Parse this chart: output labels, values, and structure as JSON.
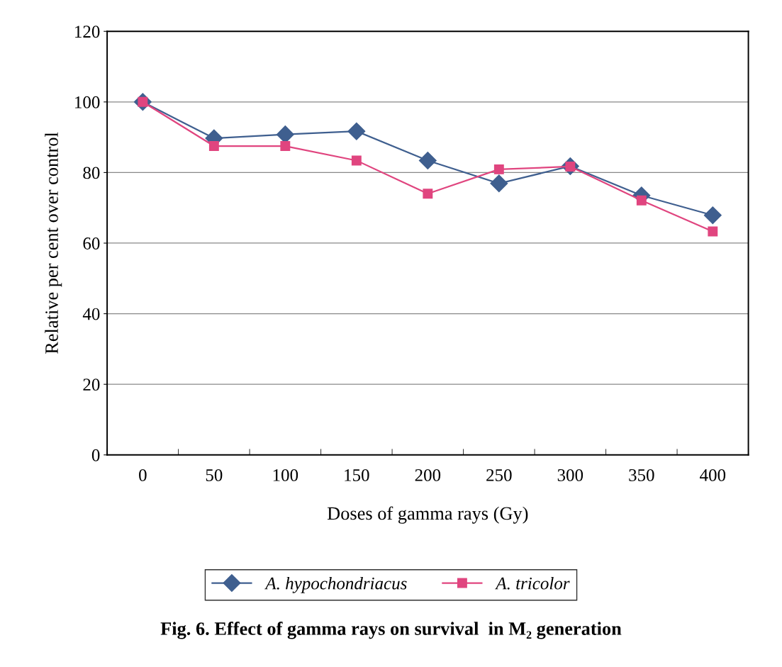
{
  "chart_data": {
    "type": "line",
    "title": "Fig. 6. Effect of gamma rays on survival  in M₂ generation",
    "xlabel": "Doses of gamma rays (Gy)",
    "ylabel": "Relative per cent over control",
    "categories": [
      "0",
      "50",
      "100",
      "150",
      "200",
      "250",
      "300",
      "350",
      "400"
    ],
    "series": [
      {
        "name": "A. hypochondriacus",
        "color": "#3f5f8f",
        "marker": "diamond",
        "values": [
          100,
          89.7,
          90.8,
          91.7,
          83.4,
          76.9,
          81.8,
          73.5,
          67.9
        ]
      },
      {
        "name": "A. tricolor",
        "color": "#e0457f",
        "marker": "square",
        "values": [
          100,
          87.5,
          87.5,
          83.4,
          74.0,
          80.9,
          81.7,
          72.1,
          63.3
        ]
      }
    ],
    "ylim": [
      0,
      120
    ],
    "yticks": [
      0,
      20,
      40,
      60,
      80,
      100,
      120
    ],
    "grid": "y",
    "legend": "bottom"
  }
}
